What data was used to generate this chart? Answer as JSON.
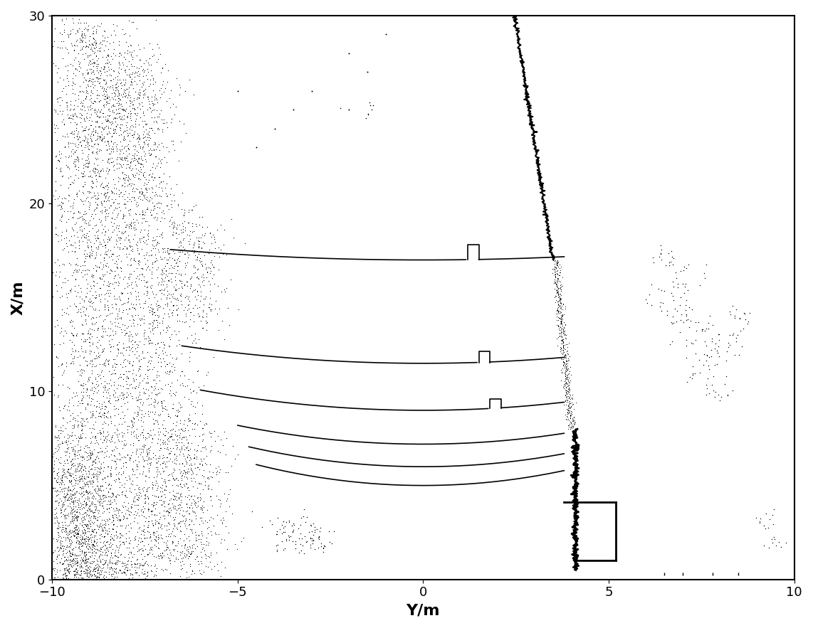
{
  "xlim": [
    0,
    30
  ],
  "ylim": [
    -10,
    10
  ],
  "xlabel": "Y/m",
  "ylabel": "X/m",
  "xticks": [
    -10,
    -5,
    0,
    5,
    10
  ],
  "yticks": [
    0,
    10,
    20,
    30
  ],
  "background_color": "#ffffff",
  "line_color": "#000000",
  "point_color": "#000000",
  "figsize": [
    11.42,
    8.83
  ],
  "dpi": 100
}
